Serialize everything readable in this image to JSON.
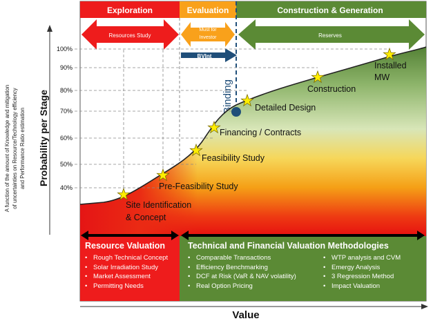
{
  "phases": [
    {
      "label": "Exploration",
      "color": "#ee1c1c"
    },
    {
      "label": "Evaluation",
      "color": "#f9a11b"
    },
    {
      "label": "Construction & Generation",
      "color": "#5b8a35"
    }
  ],
  "arrows": {
    "resources": "Resources Study",
    "investor": "Must for Investor",
    "reserves": "Reserves",
    "bvint": "BVInt"
  },
  "binding_label": "Binding",
  "y_axis": {
    "title": "Probability per Stage",
    "side_note": [
      "A function of the amount of Knowledge and mitigation",
      "of uncertainties on Resource/Technology efficiency",
      "and Performance Ratio estimation"
    ],
    "ticks": [
      "100%",
      "90%",
      "80%",
      "70%",
      "60%",
      "50%",
      "40%"
    ]
  },
  "x_axis": {
    "title": "Value"
  },
  "stages": [
    {
      "label": "Site Identification",
      "label2": "& Concept"
    },
    {
      "label": "Pre-Feasibility Study",
      "label2": ""
    },
    {
      "label": "Feasibility Study",
      "label2": ""
    },
    {
      "label": "Financing / Contracts",
      "label2": ""
    },
    {
      "label": "Detailed  Design",
      "label2": ""
    },
    {
      "label": "Construction",
      "label2": ""
    },
    {
      "label": "Installed",
      "label2": "MW"
    }
  ],
  "resource_valuation": {
    "title": "Resource Valuation",
    "items": [
      "Rough Technical Concept",
      "Solar Irradiation Study",
      "Market Assessment",
      "Permitting Needs"
    ]
  },
  "technical_valuation": {
    "title": "Technical and Financial Valuation Methodologies",
    "col1": [
      "Comparable Transactions",
      "Efficiency Benchmarking",
      "DCF at Risk (VaR & NAV volatility)",
      "Real Option Pricing"
    ],
    "col2": [
      "WTP analysis and CVM",
      "Emergy Analysis",
      "3  Regression Method",
      "Impact Valuation"
    ]
  }
}
